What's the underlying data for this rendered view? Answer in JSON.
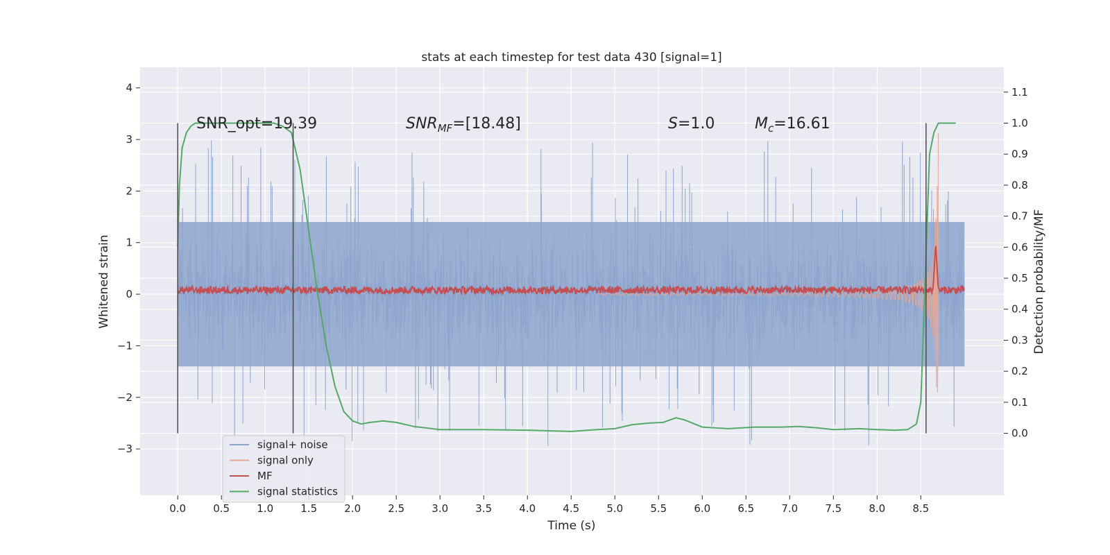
{
  "chart_data": {
    "type": "line",
    "title": "stats at each timestep for test data 430 [signal=1]",
    "xlabel": "Time (s)",
    "ylabel": "Whitened strain",
    "ylabel_right": "Detection probability/MF",
    "xlim": [
      -0.43,
      9.45
    ],
    "ylim": [
      -3.9,
      4.4
    ],
    "ylim_right": [
      -0.2,
      1.18
    ],
    "x_ticks": [
      0.0,
      0.5,
      1.0,
      1.5,
      2.0,
      2.5,
      3.0,
      3.5,
      4.0,
      4.5,
      5.0,
      5.5,
      6.0,
      6.5,
      7.0,
      7.5,
      8.0,
      8.5
    ],
    "x_tick_labels": [
      "0.0",
      "0.5",
      "1.0",
      "1.5",
      "2.0",
      "2.5",
      "3.0",
      "3.5",
      "4.0",
      "4.5",
      "5.0",
      "5.5",
      "6.0",
      "6.5",
      "7.0",
      "7.5",
      "8.0",
      "8.5"
    ],
    "y_ticks": [
      -3,
      -2,
      -1,
      0,
      1,
      2,
      3,
      4
    ],
    "y_tick_labels": [
      "−3",
      "−2",
      "−1",
      "0",
      "1",
      "2",
      "3",
      "4"
    ],
    "y_ticks_right": [
      0.0,
      0.1,
      0.2,
      0.3,
      0.4,
      0.5,
      0.6,
      0.7,
      0.8,
      0.9,
      1.0,
      1.1
    ],
    "y_tick_labels_right": [
      "0.0",
      "0.1",
      "0.2",
      "0.3",
      "0.4",
      "0.5",
      "0.6",
      "0.7",
      "0.8",
      "0.9",
      "1.0",
      "1.1"
    ],
    "annotations": {
      "snr_opt": "SNR_opt=19.39",
      "snr_mf_base": "SNR",
      "snr_mf_sub": "MF",
      "snr_mf_value": "=[18.48]",
      "s_symbol": "S",
      "s_value": "=1.0",
      "mc_base": "M",
      "mc_sub": "c",
      "mc_value": "=16.61"
    },
    "vertical_markers": [
      0.0,
      1.32,
      8.56
    ],
    "noise_envelope": [
      -1.4,
      1.4
    ],
    "signal_statistics": {
      "x": [
        0.0,
        0.02,
        0.05,
        0.1,
        0.15,
        0.2,
        0.3,
        0.5,
        0.8,
        1.0,
        1.1,
        1.2,
        1.3,
        1.4,
        1.5,
        1.6,
        1.7,
        1.8,
        1.9,
        2.0,
        2.1,
        2.2,
        2.35,
        2.5,
        2.7,
        3.0,
        3.5,
        4.0,
        4.5,
        4.8,
        5.0,
        5.2,
        5.4,
        5.55,
        5.7,
        5.8,
        6.0,
        6.3,
        6.6,
        6.9,
        7.1,
        7.3,
        7.5,
        7.8,
        8.0,
        8.2,
        8.35,
        8.45,
        8.5,
        8.55,
        8.6,
        8.65,
        8.7,
        8.8,
        8.9
      ],
      "y": [
        0.6,
        0.8,
        0.92,
        0.97,
        0.99,
        1.0,
        1.0,
        1.0,
        1.0,
        1.0,
        1.0,
        0.99,
        0.97,
        0.85,
        0.65,
        0.45,
        0.28,
        0.15,
        0.07,
        0.04,
        0.03,
        0.035,
        0.04,
        0.035,
        0.022,
        0.012,
        0.012,
        0.01,
        0.006,
        0.012,
        0.015,
        0.028,
        0.033,
        0.035,
        0.05,
        0.043,
        0.02,
        0.015,
        0.02,
        0.02,
        0.022,
        0.018,
        0.012,
        0.015,
        0.012,
        0.01,
        0.012,
        0.03,
        0.1,
        0.5,
        0.9,
        0.97,
        1.0,
        1.0,
        1.0
      ]
    },
    "legend": {
      "position": "lower-left",
      "entries": [
        {
          "label": "signal+ noise",
          "color": "#8da4cd"
        },
        {
          "label": "signal only",
          "color": "#e8a792"
        },
        {
          "label": "MF",
          "color": "#c44e52"
        },
        {
          "label": "signal statistics",
          "color": "#55a868"
        }
      ]
    },
    "colors": {
      "plot_bg": "#eaeaf2",
      "grid": "#ffffff",
      "noise": "#8da4cd",
      "signal": "#e8a792",
      "mf": "#c44e52",
      "stat": "#55a868",
      "marker": "#4a4a4a"
    }
  }
}
